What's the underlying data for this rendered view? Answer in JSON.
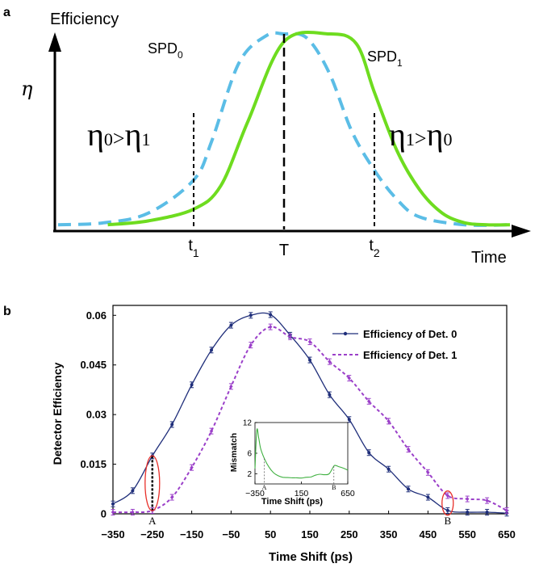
{
  "panels": {
    "a": "a",
    "b": "b"
  },
  "chart_data": [
    {
      "type": "line",
      "panel": "a",
      "ylabel": "Efficiency",
      "ysymbol": "η",
      "xlabel": "Time",
      "series": [
        {
          "name": "SPD",
          "subscript": "0",
          "style": "dashed",
          "color": "#5bbde6",
          "x": [
            0.0,
            0.1,
            0.2,
            0.3,
            0.34,
            0.4,
            0.46,
            0.5,
            0.55,
            0.6,
            0.65,
            0.7,
            0.75,
            0.8,
            0.9,
            1.0
          ],
          "y": [
            0.02,
            0.03,
            0.08,
            0.25,
            0.45,
            0.85,
            0.99,
            1.0,
            0.98,
            0.8,
            0.5,
            0.3,
            0.15,
            0.06,
            0.02,
            0.02
          ]
        },
        {
          "name": "SPD",
          "subscript": "1",
          "style": "solid",
          "color": "#6edc1f",
          "x": [
            0.11,
            0.2,
            0.3,
            0.36,
            0.42,
            0.5,
            0.6,
            0.66,
            0.7,
            0.75,
            0.8,
            0.85,
            0.9,
            0.95,
            1.0
          ],
          "y": [
            0.02,
            0.04,
            0.1,
            0.22,
            0.55,
            0.96,
            1.0,
            0.95,
            0.7,
            0.4,
            0.2,
            0.08,
            0.03,
            0.02,
            0.02
          ]
        }
      ],
      "markers": [
        {
          "label": "t",
          "subscript": "1",
          "x": 0.3
        },
        {
          "label": "T",
          "subscript": "",
          "x": 0.5
        },
        {
          "label": "t",
          "subscript": "2",
          "x": 0.7
        }
      ],
      "annotations": [
        {
          "base": "η",
          "a": "0",
          "op": ">",
          "b": "η",
          "c": "1"
        },
        {
          "base": "η",
          "a": "1",
          "op": ">",
          "b": "η",
          "c": "0"
        }
      ]
    },
    {
      "type": "line",
      "panel": "b",
      "xlabel": "Time Shift (ps)",
      "ylabel": "Detector Efficiency",
      "xlim": [
        -350,
        650
      ],
      "ylim": [
        0,
        0.063
      ],
      "xticks": [
        "-350",
        "-250",
        "-150",
        "-50",
        "50",
        "150",
        "250",
        "350",
        "450",
        "550",
        "650"
      ],
      "yticks": [
        "0",
        "0.015",
        "0.03",
        "0.045",
        "0.06"
      ],
      "x": [
        -350,
        -300,
        -250,
        -200,
        -150,
        -100,
        -50,
        0,
        50,
        100,
        150,
        200,
        250,
        300,
        350,
        400,
        450,
        500,
        550,
        600,
        650
      ],
      "series": [
        {
          "name": "Efficiency of Det. 0",
          "style": "solid",
          "color": "#1f2e7a",
          "values": [
            0.003,
            0.007,
            0.0175,
            0.027,
            0.039,
            0.0495,
            0.057,
            0.06,
            0.0602,
            0.054,
            0.0465,
            0.036,
            0.0285,
            0.0185,
            0.0135,
            0.0075,
            0.005,
            0.001,
            0.0005,
            0.0005,
            0.0002
          ]
        },
        {
          "name": "Efficiency of Det. 1",
          "style": "dashed",
          "color": "#9b40c9",
          "values": [
            0.0005,
            0.0005,
            0.001,
            0.005,
            0.014,
            0.025,
            0.0385,
            0.051,
            0.0565,
            0.0535,
            0.052,
            0.046,
            0.041,
            0.034,
            0.028,
            0.0195,
            0.0125,
            0.0055,
            0.0045,
            0.004,
            0.001
          ]
        }
      ],
      "points": [
        {
          "label": "A",
          "x": -250
        },
        {
          "label": "B",
          "x": 500
        }
      ],
      "inset": {
        "type": "line",
        "xlabel": "Time Shift (ps)",
        "ylabel": "Mismatch",
        "xlim": [
          -350,
          650
        ],
        "ylim": [
          0,
          12
        ],
        "xticks": [
          "-350",
          "150",
          "650"
        ],
        "yticks": [
          "2",
          "6",
          "12"
        ],
        "series": [
          {
            "name": "Mismatch",
            "color": "#3fb040",
            "x": [
              -350,
              -330,
              -310,
              -290,
              -250,
              -200,
              -150,
              -100,
              -50,
              0,
              50,
              100,
              150,
              200,
              250,
              300,
              350,
              400,
              450,
              500,
              520,
              550,
              600,
              650
            ],
            "y": [
              3.0,
              10.5,
              9.0,
              7.0,
              5.0,
              3.3,
              2.2,
              1.6,
              1.3,
              1.25,
              1.2,
              1.2,
              1.15,
              1.3,
              1.35,
              1.7,
              1.9,
              1.8,
              2.0,
              3.5,
              3.6,
              3.4,
              3.1,
              2.7
            ]
          }
        ],
        "points": [
          {
            "label": "A",
            "x": -250
          },
          {
            "label": "B",
            "x": 500
          }
        ]
      }
    }
  ]
}
